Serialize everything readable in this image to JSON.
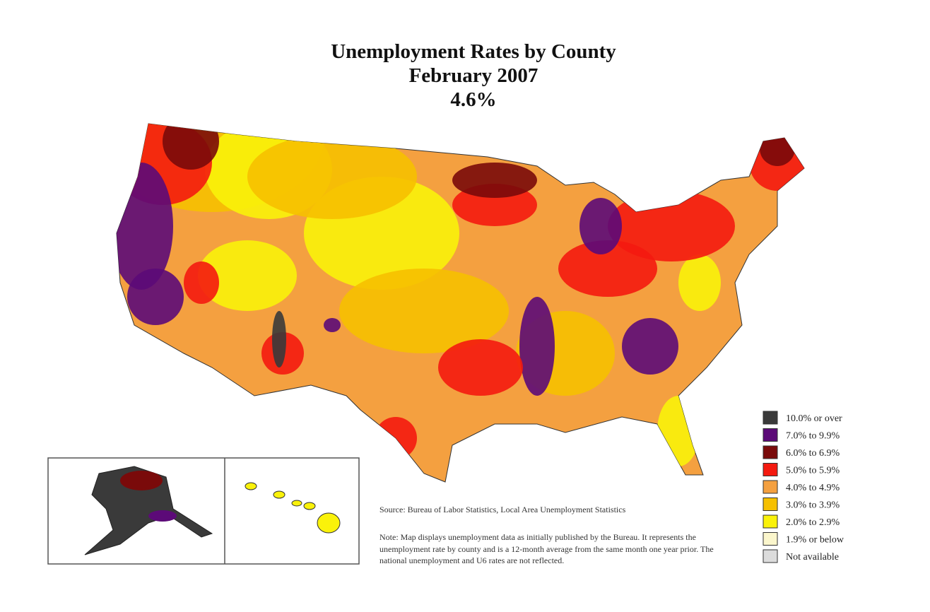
{
  "title": [
    "Unemployment Rates by County",
    "February 2007",
    "4.6%"
  ],
  "legend": [
    {
      "label": "10.0% or over",
      "color": "#3a3a3a"
    },
    {
      "label": "7.0% to 9.9%",
      "color": "#5c0a78"
    },
    {
      "label": "6.0% to 6.9%",
      "color": "#7a0a0a"
    },
    {
      "label": "5.0% to 5.9%",
      "color": "#f41a10"
    },
    {
      "label": "4.0% to 4.9%",
      "color": "#f4a040"
    },
    {
      "label": "3.0% to 3.9%",
      "color": "#f6c000"
    },
    {
      "label": "2.0% to 2.9%",
      "color": "#faf20a"
    },
    {
      "label": "1.9% or below",
      "color": "#fbf6cc"
    },
    {
      "label": "Not available",
      "color": "#dcdcdc"
    }
  ],
  "source": "Source: Bureau of Labor Statistics, Local Area Unemployment Statistics",
  "note": "Note: Map displays unemployment data as initially published by the Bureau. It represents the unemployment rate by county and is a 12-month average from the same month one year prior. The national unemployment and U6 rates are not reflected."
}
